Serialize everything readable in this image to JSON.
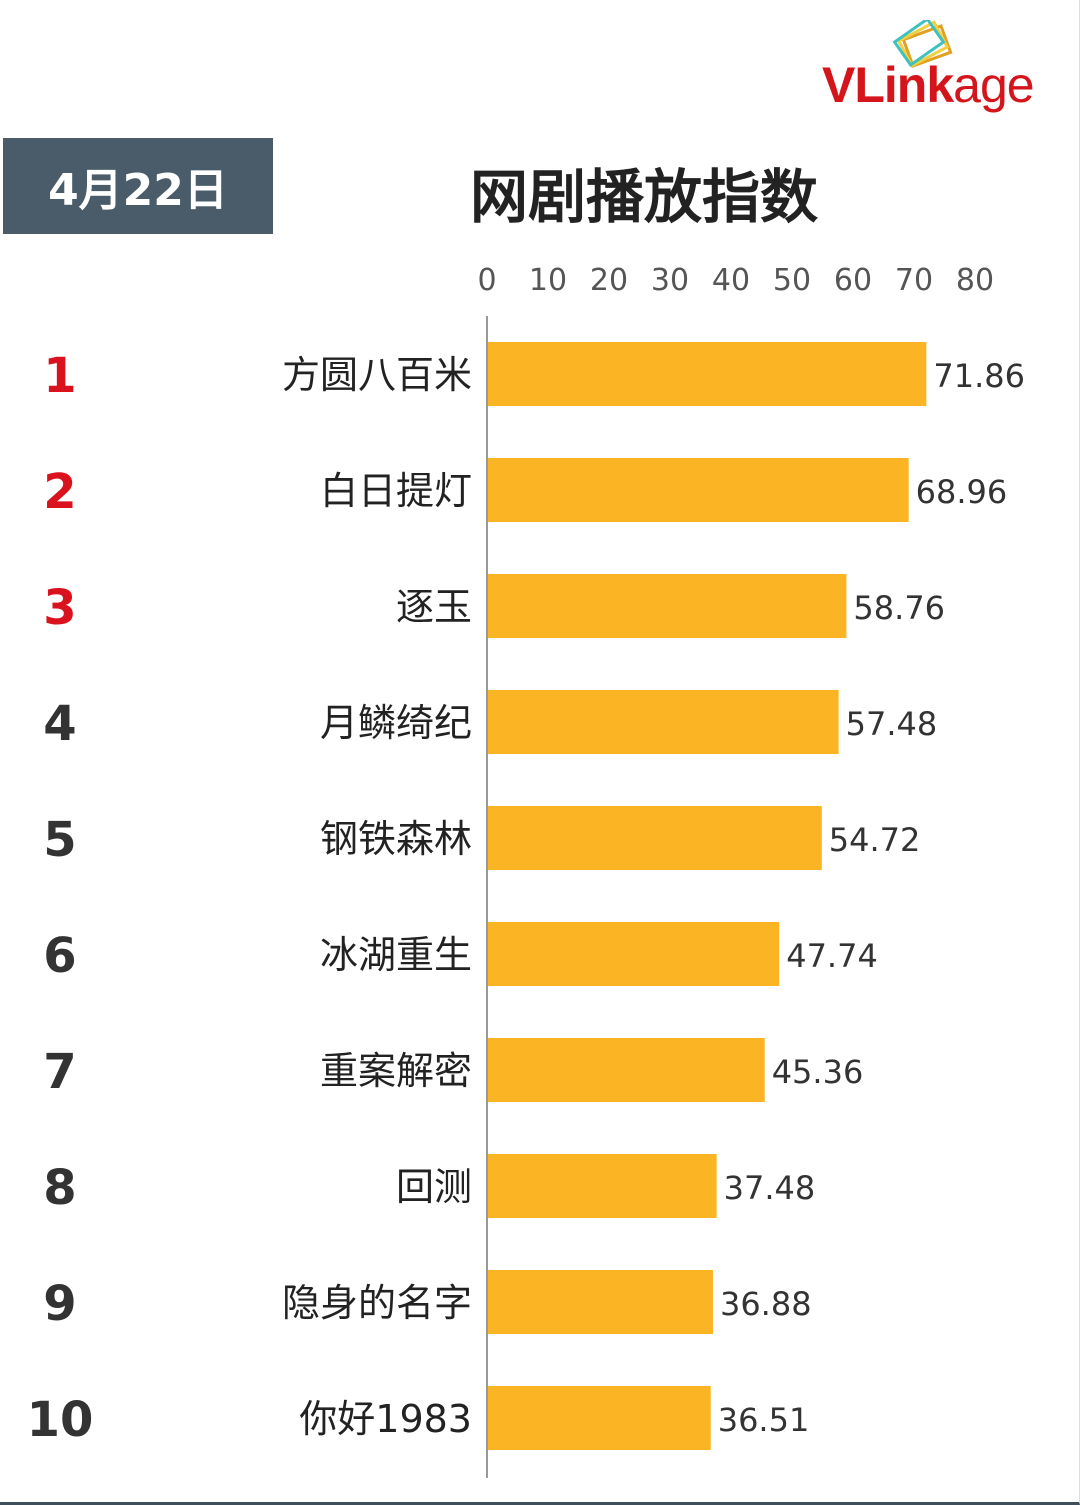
{
  "header": {
    "date": "4月22日",
    "logo": "VLinkage"
  },
  "chart_data": {
    "type": "bar",
    "orientation": "horizontal",
    "title": "网剧播放指数",
    "xlim": [
      0,
      80
    ],
    "xticks": [
      0,
      10,
      20,
      30,
      40,
      50,
      60,
      70,
      80
    ],
    "grid": false,
    "bar_color": "#FBB423",
    "rank_colors": {
      "top3": "#D9121E",
      "rest": "#333333"
    },
    "ranks": [
      "1",
      "2",
      "3",
      "4",
      "5",
      "6",
      "7",
      "8",
      "9",
      "10"
    ],
    "categories": [
      "方圆八百米",
      "白日提灯",
      "逐玉",
      "月鳞绮纪",
      "钢铁森林",
      "冰湖重生",
      "重案解密",
      "回测",
      "隐身的名字",
      "你好1983"
    ],
    "values": [
      71.86,
      68.96,
      58.76,
      57.48,
      54.72,
      47.74,
      45.36,
      37.48,
      36.88,
      36.51
    ]
  }
}
